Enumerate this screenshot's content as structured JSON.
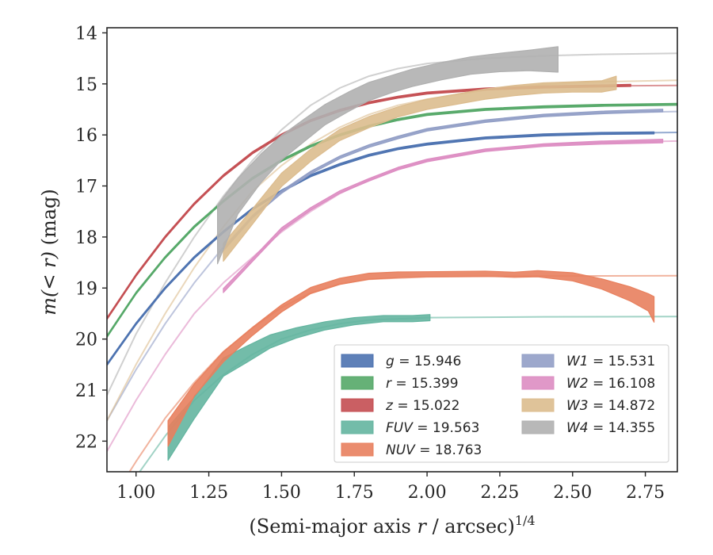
{
  "chart_data": {
    "type": "line",
    "title": "",
    "xlabel_main": "(Semi-major axis ",
    "xlabel_var": "r",
    "xlabel_tail": " / arcsec)",
    "xlabel_sup": "1/4",
    "ylabel_main": "m(< r)",
    "ylabel_tail": " (mag)",
    "xlim": [
      0.9,
      2.86
    ],
    "ylim": [
      22.6,
      13.9
    ],
    "y_inverted": true,
    "xticks": [
      "1.00",
      "1.25",
      "1.50",
      "1.75",
      "2.00",
      "2.25",
      "2.50",
      "2.75"
    ],
    "xtick_values": [
      1.0,
      1.25,
      1.5,
      1.75,
      2.0,
      2.25,
      2.5,
      2.75
    ],
    "yticks": [
      "14",
      "15",
      "16",
      "17",
      "18",
      "19",
      "20",
      "21",
      "22"
    ],
    "ytick_values": [
      14,
      15,
      16,
      17,
      18,
      19,
      20,
      21,
      22
    ],
    "grid": false,
    "legend_position": "lower-right",
    "series": [
      {
        "name": "g = 15.946",
        "var": "g",
        "val": "15.946",
        "color": "#4c72b0",
        "model": [
          [
            0.9,
            20.5
          ],
          [
            1.0,
            19.7
          ],
          [
            1.1,
            19.0
          ],
          [
            1.2,
            18.4
          ],
          [
            1.3,
            17.9
          ],
          [
            1.4,
            17.45
          ],
          [
            1.5,
            17.1
          ],
          [
            1.6,
            16.8
          ],
          [
            1.7,
            16.58
          ],
          [
            1.8,
            16.4
          ],
          [
            1.9,
            16.27
          ],
          [
            2.0,
            16.18
          ],
          [
            2.2,
            16.06
          ],
          [
            2.4,
            16.0
          ],
          [
            2.6,
            15.97
          ],
          [
            2.86,
            15.95
          ]
        ],
        "obs_x": [
          0.9,
          1.0,
          1.1,
          1.2,
          1.3,
          1.4,
          1.5,
          1.6,
          1.7,
          1.8,
          1.9,
          2.0,
          2.2,
          2.4,
          2.6,
          2.78
        ],
        "obs_y": [
          20.5,
          19.7,
          19.0,
          18.4,
          17.9,
          17.45,
          17.1,
          16.8,
          16.58,
          16.4,
          16.27,
          16.18,
          16.06,
          16.0,
          15.97,
          15.96
        ],
        "obs_w": [
          0.04,
          0.04,
          0.04,
          0.04,
          0.04,
          0.04,
          0.04,
          0.04,
          0.04,
          0.04,
          0.04,
          0.04,
          0.04,
          0.04,
          0.04,
          0.04
        ]
      },
      {
        "name": "r = 15.399",
        "var": "r",
        "val": "15.399",
        "color": "#55a868",
        "model": [
          [
            0.9,
            19.95
          ],
          [
            1.0,
            19.1
          ],
          [
            1.1,
            18.4
          ],
          [
            1.2,
            17.8
          ],
          [
            1.3,
            17.3
          ],
          [
            1.4,
            16.85
          ],
          [
            1.5,
            16.5
          ],
          [
            1.6,
            16.22
          ],
          [
            1.7,
            16.0
          ],
          [
            1.8,
            15.83
          ],
          [
            1.9,
            15.7
          ],
          [
            2.0,
            15.6
          ],
          [
            2.2,
            15.5
          ],
          [
            2.4,
            15.45
          ],
          [
            2.6,
            15.42
          ],
          [
            2.86,
            15.4
          ]
        ],
        "obs_x": [
          0.9,
          1.0,
          1.1,
          1.2,
          1.3,
          1.4,
          1.5,
          1.6,
          1.7,
          1.8,
          1.9,
          2.0,
          2.2,
          2.4,
          2.6,
          2.86
        ],
        "obs_y": [
          19.95,
          19.1,
          18.4,
          17.8,
          17.3,
          16.85,
          16.5,
          16.22,
          16.0,
          15.83,
          15.7,
          15.6,
          15.5,
          15.45,
          15.42,
          15.4
        ],
        "obs_w": [
          0.04,
          0.04,
          0.04,
          0.04,
          0.04,
          0.04,
          0.04,
          0.04,
          0.04,
          0.04,
          0.04,
          0.04,
          0.04,
          0.04,
          0.04,
          0.04
        ]
      },
      {
        "name": "z = 15.022",
        "var": "z",
        "val": "15.022",
        "color": "#c44e52",
        "model": [
          [
            0.9,
            19.6
          ],
          [
            1.0,
            18.75
          ],
          [
            1.1,
            18.0
          ],
          [
            1.2,
            17.35
          ],
          [
            1.3,
            16.8
          ],
          [
            1.4,
            16.35
          ],
          [
            1.5,
            16.0
          ],
          [
            1.6,
            15.72
          ],
          [
            1.7,
            15.52
          ],
          [
            1.8,
            15.37
          ],
          [
            1.9,
            15.26
          ],
          [
            2.0,
            15.18
          ],
          [
            2.2,
            15.1
          ],
          [
            2.4,
            15.06
          ],
          [
            2.6,
            15.04
          ],
          [
            2.86,
            15.03
          ]
        ],
        "obs_x": [
          0.9,
          1.0,
          1.1,
          1.2,
          1.3,
          1.4,
          1.5,
          1.6,
          1.7,
          1.8,
          1.9,
          2.0,
          2.2,
          2.4,
          2.6,
          2.7
        ],
        "obs_y": [
          19.6,
          18.75,
          18.0,
          17.35,
          16.8,
          16.35,
          16.0,
          15.72,
          15.52,
          15.37,
          15.26,
          15.18,
          15.1,
          15.06,
          15.04,
          15.03
        ],
        "obs_w": [
          0.04,
          0.04,
          0.04,
          0.04,
          0.04,
          0.04,
          0.04,
          0.04,
          0.04,
          0.04,
          0.04,
          0.04,
          0.04,
          0.04,
          0.04,
          0.04
        ]
      },
      {
        "name": "FUV = 19.563",
        "var": "FUV",
        "val": "19.563",
        "color": "#64b5a0",
        "model": [
          [
            0.9,
            23.6
          ],
          [
            1.0,
            22.7
          ],
          [
            1.1,
            21.9
          ],
          [
            1.2,
            21.2
          ],
          [
            1.3,
            20.7
          ],
          [
            1.4,
            20.3
          ],
          [
            1.5,
            20.0
          ],
          [
            1.6,
            19.82
          ],
          [
            1.7,
            19.7
          ],
          [
            1.8,
            19.63
          ],
          [
            2.0,
            19.58
          ],
          [
            2.4,
            19.565
          ],
          [
            2.86,
            19.56
          ]
        ],
        "obs_x": [
          1.11,
          1.2,
          1.3,
          1.38,
          1.46,
          1.55,
          1.65,
          1.75,
          1.85,
          1.95,
          2.01
        ],
        "obs_y": [
          22.05,
          21.35,
          20.55,
          20.3,
          20.05,
          19.88,
          19.74,
          19.65,
          19.6,
          19.6,
          19.58
        ],
        "obs_w": [
          0.65,
          0.42,
          0.36,
          0.32,
          0.26,
          0.2,
          0.16,
          0.14,
          0.12,
          0.12,
          0.12
        ]
      },
      {
        "name": "NUV = 18.763",
        "var": "NUV",
        "val": "18.763",
        "color": "#e8805e",
        "model": [
          [
            0.9,
            23.3
          ],
          [
            1.0,
            22.4
          ],
          [
            1.1,
            21.55
          ],
          [
            1.2,
            20.85
          ],
          [
            1.3,
            20.25
          ],
          [
            1.4,
            19.78
          ],
          [
            1.5,
            19.38
          ],
          [
            1.6,
            19.1
          ],
          [
            1.7,
            18.92
          ],
          [
            1.8,
            18.83
          ],
          [
            2.0,
            18.78
          ],
          [
            2.4,
            18.765
          ],
          [
            2.86,
            18.76
          ]
        ],
        "obs_x": [
          1.11,
          1.2,
          1.3,
          1.4,
          1.5,
          1.6,
          1.7,
          1.8,
          1.9,
          2.0,
          2.2,
          2.3,
          2.38,
          2.5,
          2.6,
          2.7,
          2.76,
          2.78
        ],
        "obs_y": [
          21.85,
          21.0,
          20.35,
          19.85,
          19.4,
          19.05,
          18.87,
          18.77,
          18.74,
          18.73,
          18.72,
          18.74,
          18.72,
          18.78,
          18.92,
          19.12,
          19.28,
          19.42
        ],
        "obs_w": [
          0.5,
          0.24,
          0.2,
          0.16,
          0.14,
          0.12,
          0.12,
          0.12,
          0.11,
          0.1,
          0.1,
          0.1,
          0.12,
          0.16,
          0.2,
          0.28,
          0.34,
          0.5
        ]
      },
      {
        "name": "W1 = 15.531",
        "var": "W1",
        "val": "15.531",
        "color": "#929fc6",
        "model": [
          [
            0.9,
            21.6
          ],
          [
            1.0,
            20.6
          ],
          [
            1.1,
            19.7
          ],
          [
            1.2,
            18.9
          ],
          [
            1.3,
            18.2
          ],
          [
            1.4,
            17.6
          ],
          [
            1.5,
            17.1
          ],
          [
            1.6,
            16.72
          ],
          [
            1.7,
            16.42
          ],
          [
            1.8,
            16.2
          ],
          [
            1.9,
            16.03
          ],
          [
            2.0,
            15.9
          ],
          [
            2.2,
            15.73
          ],
          [
            2.4,
            15.62
          ],
          [
            2.6,
            15.57
          ],
          [
            2.86,
            15.54
          ]
        ],
        "obs_x": [
          1.3,
          1.4,
          1.5,
          1.6,
          1.7,
          1.8,
          1.9,
          2.0,
          2.2,
          2.4,
          2.6,
          2.81
        ],
        "obs_y": [
          18.25,
          17.6,
          17.12,
          16.74,
          16.44,
          16.22,
          16.05,
          15.9,
          15.73,
          15.62,
          15.56,
          15.52
        ],
        "obs_w": [
          0.05,
          0.05,
          0.05,
          0.05,
          0.05,
          0.05,
          0.05,
          0.05,
          0.05,
          0.05,
          0.05,
          0.05
        ]
      },
      {
        "name": "W2 = 16.108",
        "var": "W2",
        "val": "16.108",
        "color": "#dd8dc2",
        "model": [
          [
            0.9,
            22.2
          ],
          [
            1.0,
            21.2
          ],
          [
            1.1,
            20.3
          ],
          [
            1.2,
            19.5
          ],
          [
            1.3,
            18.9
          ],
          [
            1.4,
            18.4
          ],
          [
            1.5,
            17.9
          ],
          [
            1.6,
            17.5
          ],
          [
            1.7,
            17.15
          ],
          [
            1.8,
            16.88
          ],
          [
            1.9,
            16.66
          ],
          [
            2.0,
            16.5
          ],
          [
            2.2,
            16.3
          ],
          [
            2.4,
            16.2
          ],
          [
            2.6,
            16.15
          ],
          [
            2.86,
            16.12
          ]
        ],
        "obs_x": [
          1.3,
          1.4,
          1.5,
          1.6,
          1.7,
          1.8,
          1.9,
          2.0,
          2.2,
          2.4,
          2.6,
          2.81
        ],
        "obs_y": [
          19.05,
          18.45,
          17.85,
          17.45,
          17.12,
          16.88,
          16.66,
          16.5,
          16.3,
          16.2,
          16.15,
          16.12
        ],
        "obs_w": [
          0.08,
          0.06,
          0.06,
          0.05,
          0.05,
          0.05,
          0.05,
          0.05,
          0.05,
          0.05,
          0.06,
          0.07
        ]
      },
      {
        "name": "W3 = 14.872",
        "var": "W3",
        "val": "14.872",
        "color": "#dcbc8e",
        "model": [
          [
            0.9,
            21.6
          ],
          [
            1.0,
            20.5
          ],
          [
            1.1,
            19.5
          ],
          [
            1.2,
            18.6
          ],
          [
            1.3,
            17.8
          ],
          [
            1.4,
            17.1
          ],
          [
            1.5,
            16.6
          ],
          [
            1.6,
            16.18
          ],
          [
            1.7,
            15.85
          ],
          [
            1.8,
            15.6
          ],
          [
            1.9,
            15.42
          ],
          [
            2.0,
            15.3
          ],
          [
            2.2,
            15.12
          ],
          [
            2.4,
            15.01
          ],
          [
            2.6,
            14.96
          ],
          [
            2.86,
            14.93
          ]
        ],
        "obs_x": [
          1.3,
          1.4,
          1.5,
          1.6,
          1.7,
          1.8,
          1.9,
          2.0,
          2.1,
          2.2,
          2.3,
          2.4,
          2.5,
          2.6,
          2.65
        ],
        "obs_y": [
          18.3,
          17.6,
          16.88,
          16.4,
          16.0,
          15.75,
          15.55,
          15.4,
          15.3,
          15.2,
          15.13,
          15.08,
          15.06,
          15.05,
          14.98
        ],
        "obs_w": [
          0.35,
          0.3,
          0.26,
          0.24,
          0.22,
          0.22,
          0.2,
          0.2,
          0.2,
          0.2,
          0.2,
          0.2,
          0.2,
          0.22,
          0.26
        ]
      },
      {
        "name": "W4 = 14.355",
        "var": "W4",
        "val": "14.355",
        "color": "#b0b0b0",
        "model": [
          [
            0.9,
            21.1
          ],
          [
            1.0,
            19.9
          ],
          [
            1.1,
            18.9
          ],
          [
            1.2,
            18.0
          ],
          [
            1.3,
            17.2
          ],
          [
            1.4,
            16.5
          ],
          [
            1.5,
            15.9
          ],
          [
            1.6,
            15.42
          ],
          [
            1.7,
            15.08
          ],
          [
            1.8,
            14.85
          ],
          [
            1.9,
            14.7
          ],
          [
            2.0,
            14.6
          ],
          [
            2.2,
            14.5
          ],
          [
            2.4,
            14.45
          ],
          [
            2.6,
            14.42
          ],
          [
            2.86,
            14.4
          ]
        ],
        "obs_x": [
          1.28,
          1.35,
          1.43,
          1.5,
          1.58,
          1.65,
          1.73,
          1.8,
          1.88,
          1.95,
          2.05,
          2.15,
          2.25,
          2.35,
          2.45
        ],
        "obs_y": [
          17.95,
          17.2,
          16.65,
          16.25,
          15.9,
          15.6,
          15.35,
          15.15,
          15.0,
          14.88,
          14.75,
          14.64,
          14.58,
          14.54,
          14.52
        ],
        "obs_w": [
          1.15,
          0.7,
          0.56,
          0.48,
          0.44,
          0.4,
          0.38,
          0.36,
          0.34,
          0.34,
          0.34,
          0.34,
          0.36,
          0.4,
          0.5
        ]
      }
    ]
  }
}
